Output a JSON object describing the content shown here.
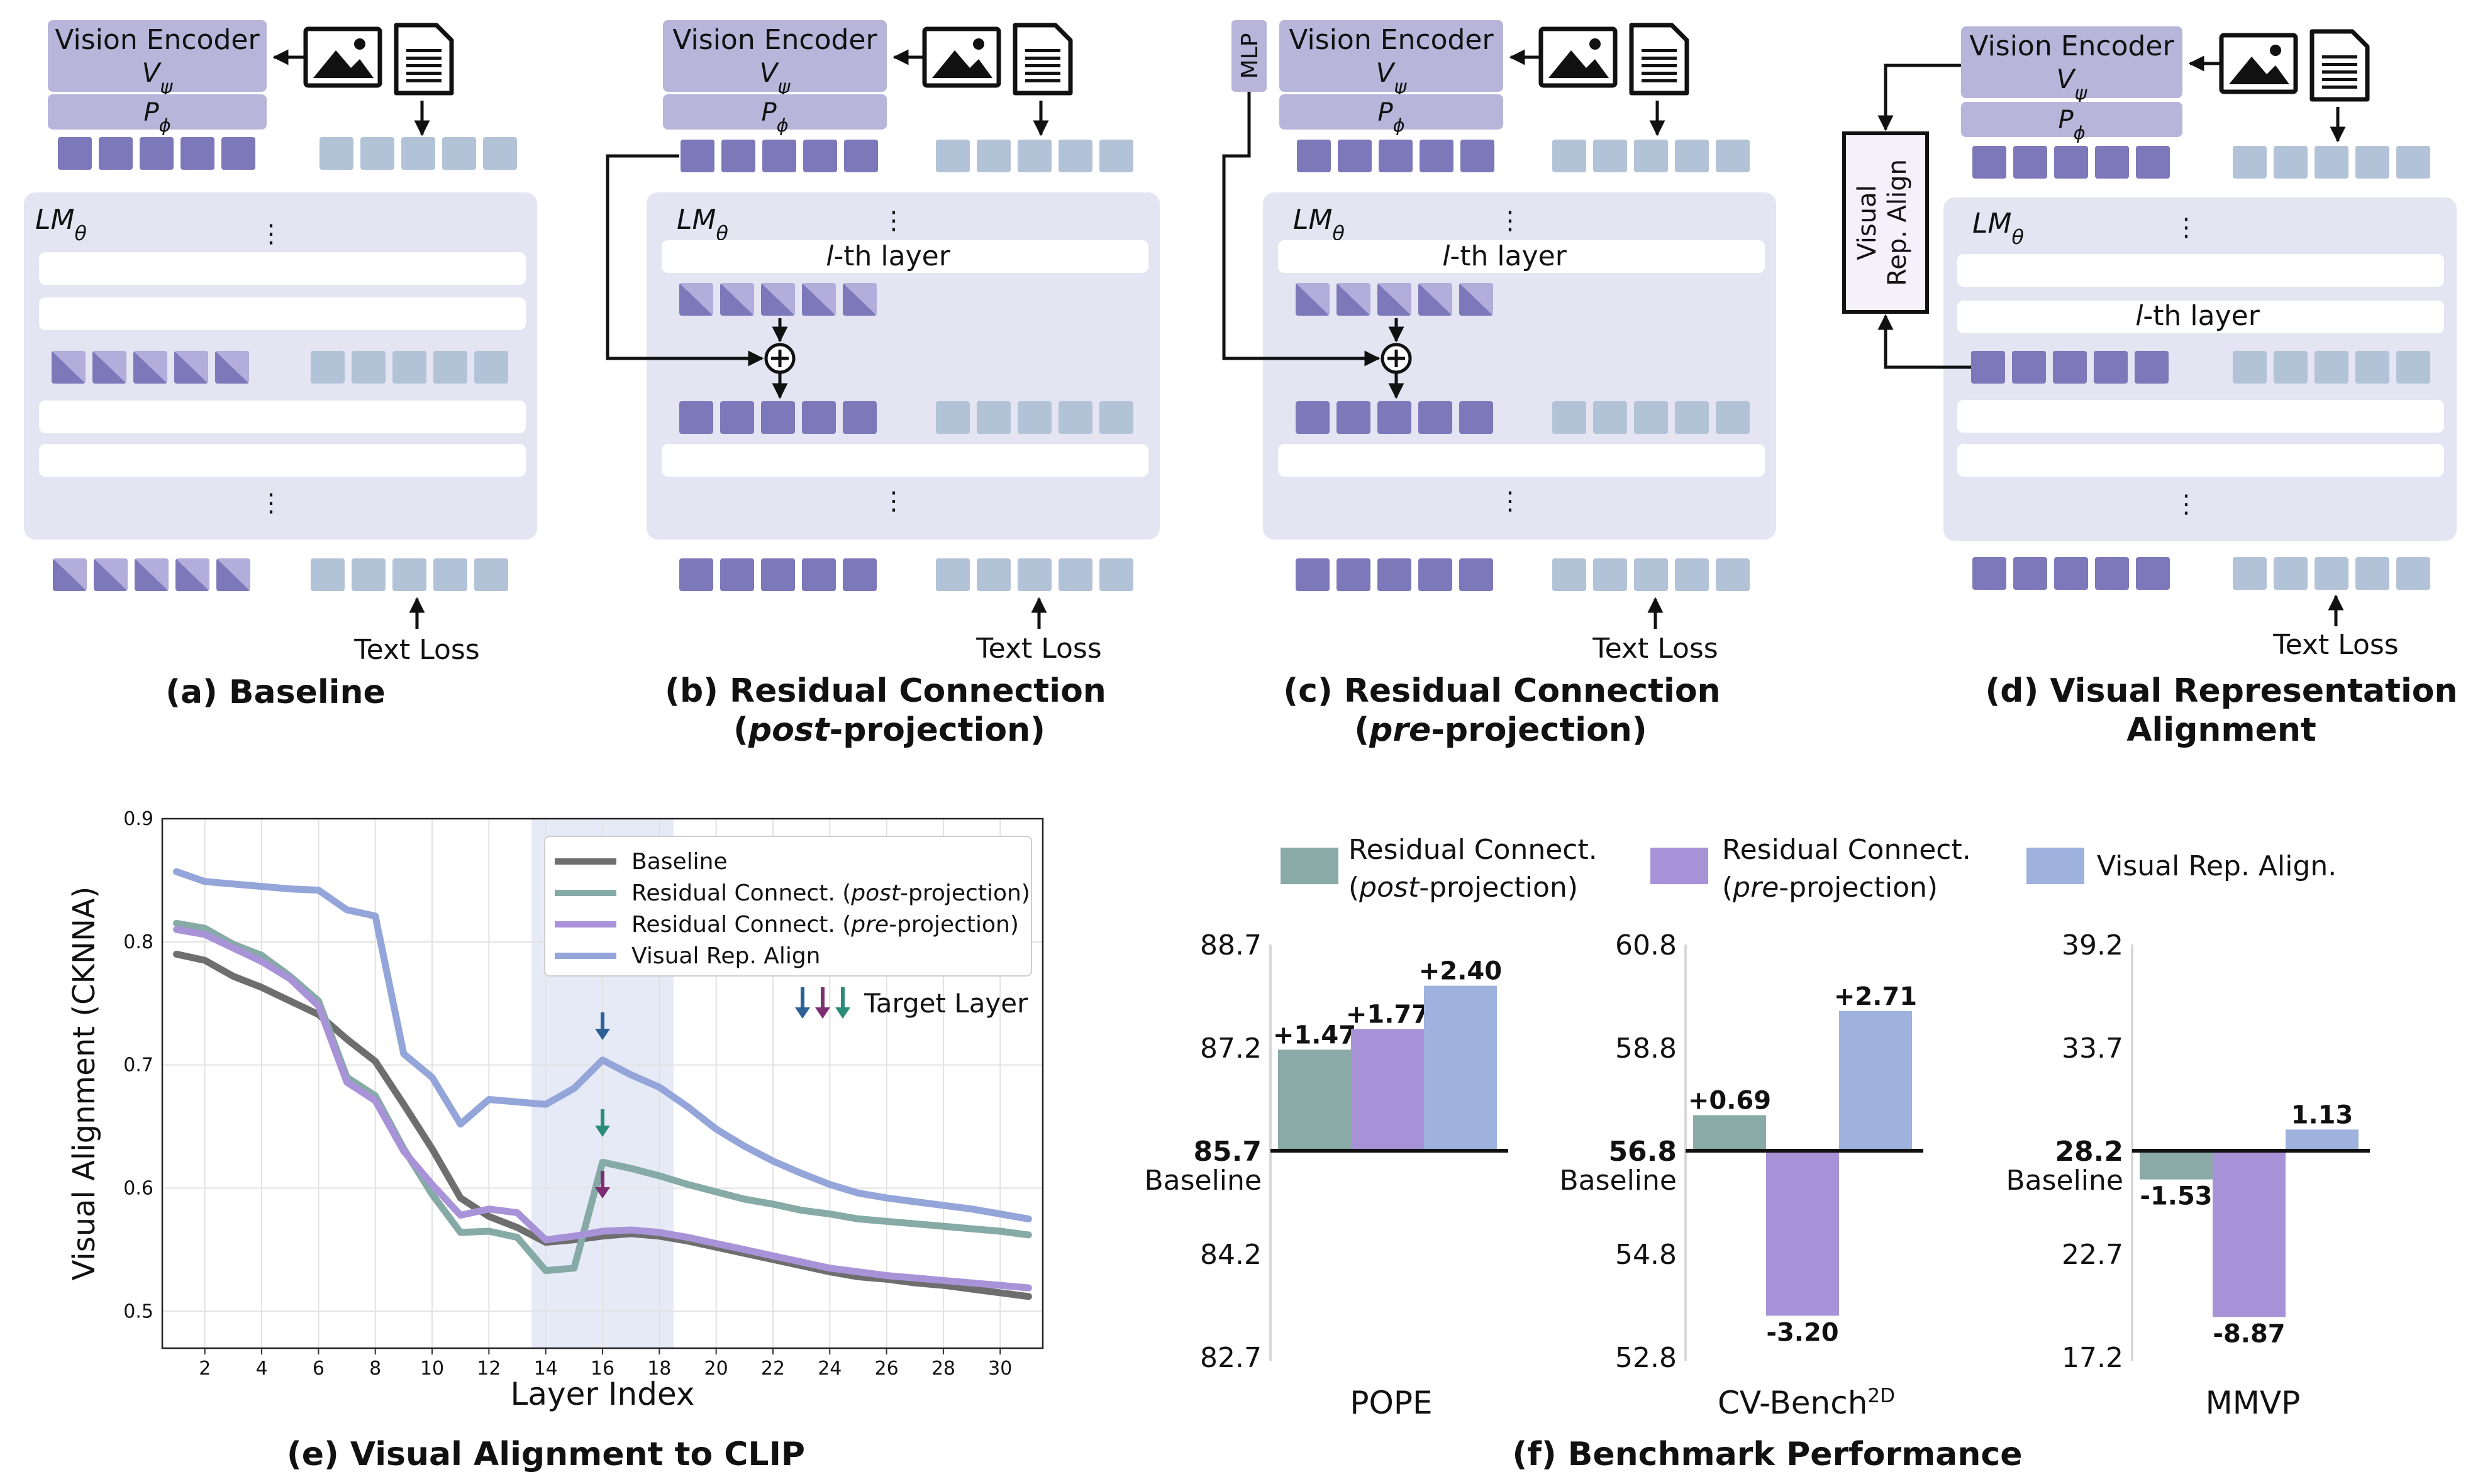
{
  "diagrams": {
    "vision_encoder_label": "Vision Encoder",
    "encoder_symbol": "V",
    "encoder_sub": "ψ",
    "projector_symbol": "P",
    "projector_sub": "ϕ",
    "lm_symbol": "LM",
    "lm_sub": "θ",
    "ellipsis": "⋮",
    "lth_layer_l": "l",
    "lth_layer_rest": "-th layer",
    "text_loss": "Text Loss",
    "mlp_label": "MLP",
    "align_line1": "Visual",
    "align_line2": "Rep. Align",
    "captions": {
      "a": "(a) Baseline",
      "b1": "(b) Residual Connection",
      "b2_open": "(",
      "b2_em": "post",
      "b2_close": "-projection)",
      "c1": "(c) Residual Connection",
      "c2_open": "(",
      "c2_em": "pre",
      "c2_close": "-projection)",
      "d1": "(d) Visual Representation",
      "d2": "Alignment"
    },
    "colors": {
      "panel": "#e4e4f2",
      "visual_token": "#7d78b9",
      "text_token": "#b3c3d7",
      "encoder_box": "#b8b5da"
    }
  },
  "chart_e": {
    "caption": "(e) Visual Alignment to CLIP",
    "xlabel": "Layer Index",
    "ylabel": "Visual Alignment (CKNNA)",
    "target_layer_label": "Target Layer",
    "x_ticks": [
      "2",
      "4",
      "6",
      "8",
      "10",
      "12",
      "14",
      "16",
      "18",
      "20",
      "22",
      "24",
      "26",
      "28",
      "30"
    ],
    "y_ticks": [
      "0.5",
      "0.6",
      "0.7",
      "0.8",
      "0.9"
    ],
    "legend": {
      "baseline": "Baseline",
      "post_prefix": "Residual Connect. (",
      "post_em": "post",
      "post_suffix": "-projection)",
      "pre_prefix": "Residual Connect. (",
      "pre_em": "pre",
      "pre_suffix": "-projection)",
      "align": "Visual Rep. Align"
    }
  },
  "chart_f": {
    "caption": "(f) Benchmark Performance",
    "legend": {
      "post_l1": "Residual Connect.",
      "post_l2_open": "(",
      "post_l2_em": "post",
      "post_l2_close": "-projection)",
      "pre_l1": "Residual Connect.",
      "pre_l2_open": "(",
      "pre_l2_em": "pre",
      "pre_l2_close": "-projection)",
      "align": "Visual Rep. Align."
    },
    "baseline_label": "Baseline",
    "panels": [
      {
        "name": "POPE",
        "ticks": [
          "88.7",
          "87.2",
          "85.7",
          "84.2",
          "82.7"
        ],
        "labels": [
          "+1.47",
          "+1.77",
          "+2.40"
        ]
      },
      {
        "name": "CV-Bench",
        "name_sup": "2D",
        "ticks": [
          "60.8",
          "58.8",
          "56.8",
          "54.8",
          "52.8"
        ],
        "labels": [
          "+0.69",
          "-3.20",
          "+2.71"
        ]
      },
      {
        "name": "MMVP",
        "ticks": [
          "39.2",
          "33.7",
          "28.2",
          "22.7",
          "17.2"
        ],
        "labels": [
          "-1.53",
          "-8.87",
          "1.13"
        ]
      }
    ]
  },
  "chart_data": [
    {
      "type": "line",
      "xlabel": "Layer Index",
      "ylabel": "Visual Alignment (CKNNA)",
      "xlim": [
        0.5,
        31.5
      ],
      "ylim": [
        0.47,
        0.9
      ],
      "grid": true,
      "legend_position": "top-right",
      "highlight_range": [
        13.5,
        18.5
      ],
      "target_layer": 16,
      "x": [
        1,
        2,
        3,
        4,
        5,
        6,
        7,
        8,
        9,
        10,
        11,
        12,
        13,
        14,
        15,
        16,
        17,
        18,
        19,
        20,
        21,
        22,
        23,
        24,
        25,
        26,
        27,
        28,
        29,
        30,
        31
      ],
      "series": [
        {
          "name": "Baseline",
          "color": "#6e6e6e",
          "values": [
            0.79,
            0.785,
            0.772,
            0.763,
            0.752,
            0.741,
            0.721,
            0.703,
            0.668,
            0.632,
            0.592,
            0.577,
            0.568,
            0.556,
            0.558,
            0.561,
            0.563,
            0.561,
            0.557,
            0.552,
            0.547,
            0.542,
            0.537,
            0.532,
            0.528,
            0.526,
            0.523,
            0.521,
            0.518,
            0.515,
            0.512
          ]
        },
        {
          "name": "Residual Connect. (post-projection)",
          "color": "#86aaa6",
          "values": [
            0.815,
            0.811,
            0.798,
            0.789,
            0.772,
            0.752,
            0.69,
            0.675,
            0.632,
            0.595,
            0.564,
            0.565,
            0.56,
            0.533,
            0.535,
            0.621,
            0.616,
            0.61,
            0.603,
            0.597,
            0.591,
            0.587,
            0.582,
            0.579,
            0.575,
            0.573,
            0.571,
            0.569,
            0.567,
            0.565,
            0.562
          ]
        },
        {
          "name": "Residual Connect. (pre-projection)",
          "color": "#a993d8",
          "values": [
            0.81,
            0.806,
            0.795,
            0.784,
            0.77,
            0.748,
            0.686,
            0.671,
            0.63,
            0.603,
            0.578,
            0.583,
            0.58,
            0.558,
            0.561,
            0.565,
            0.566,
            0.564,
            0.56,
            0.555,
            0.55,
            0.545,
            0.54,
            0.535,
            0.532,
            0.529,
            0.527,
            0.525,
            0.523,
            0.521,
            0.519
          ]
        },
        {
          "name": "Visual Rep. Align",
          "color": "#93a5d9",
          "values": [
            0.857,
            0.849,
            0.847,
            0.845,
            0.843,
            0.842,
            0.826,
            0.821,
            0.709,
            0.69,
            0.652,
            0.672,
            0.67,
            0.668,
            0.681,
            0.704,
            0.692,
            0.682,
            0.666,
            0.648,
            0.634,
            0.622,
            0.612,
            0.603,
            0.596,
            0.592,
            0.589,
            0.586,
            0.583,
            0.579,
            0.575
          ]
        }
      ]
    },
    {
      "type": "bar",
      "categories": [
        "POPE",
        "CV-Bench2D",
        "MMVP"
      ],
      "baseline": [
        85.7,
        56.8,
        28.2
      ],
      "ylim": [
        [
          82.7,
          88.7
        ],
        [
          52.8,
          60.8
        ],
        [
          17.2,
          39.2
        ]
      ],
      "series": [
        {
          "name": "Residual Connect. (post-projection)",
          "color": "#8aaaa7",
          "deltas": [
            1.47,
            0.69,
            -1.53
          ]
        },
        {
          "name": "Residual Connect. (pre-projection)",
          "color": "#a892d7",
          "deltas": [
            1.77,
            -3.2,
            -8.87
          ]
        },
        {
          "name": "Visual Rep. Align.",
          "color": "#9fb2de",
          "deltas": [
            2.4,
            2.71,
            1.13
          ]
        }
      ]
    }
  ]
}
